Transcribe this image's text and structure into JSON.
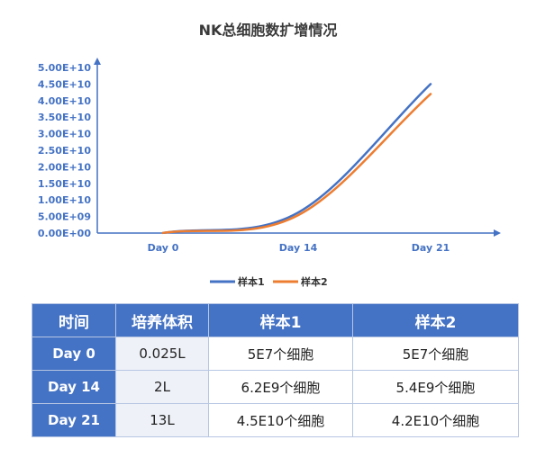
{
  "chart_data": {
    "type": "line",
    "title": "NK总细胞数扩增情况",
    "categories": [
      "Day 0",
      "Day 14",
      "Day 21"
    ],
    "series": [
      {
        "name": "样本1",
        "color": "#4472c4",
        "values": [
          50000000,
          6200000000,
          45000000000
        ]
      },
      {
        "name": "样本2",
        "color": "#ed7d31",
        "values": [
          50000000,
          5400000000,
          42000000000
        ]
      }
    ],
    "ylim": [
      0,
      50000000000
    ],
    "yticks": [
      "0.00E+00",
      "5.00E+09",
      "1.00E+10",
      "1.50E+10",
      "2.00E+10",
      "2.50E+10",
      "3.00E+10",
      "3.50E+10",
      "4.00E+10",
      "4.50E+10",
      "5.00E+10"
    ],
    "xlabel": "",
    "ylabel": "",
    "legend_position": "bottom",
    "smooth": true,
    "grid": false
  },
  "table": {
    "headers": [
      "时间",
      "培养体积",
      "样本1",
      "样本2"
    ],
    "rows": [
      [
        "Day 0",
        "0.025L",
        "5E7个细胞",
        "5E7个细胞"
      ],
      [
        "Day 14",
        "2L",
        "6.2E9个细胞",
        "5.4E9个细胞"
      ],
      [
        "Day 21",
        "13L",
        "4.5E10个细胞",
        "4.2E10个细胞"
      ]
    ]
  }
}
